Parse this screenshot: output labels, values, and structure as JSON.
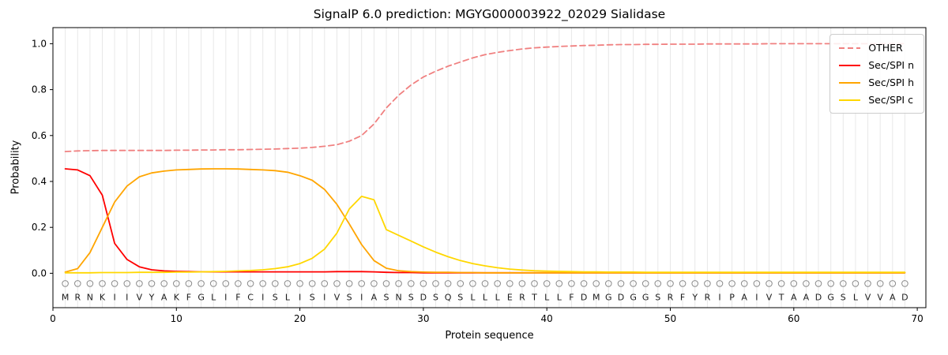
{
  "chart_data": {
    "type": "line",
    "title": "SignalP 6.0 prediction: MGYG000003922_02029 Sialidase",
    "xlabel": "Protein sequence",
    "ylabel": "Probability",
    "xlim": [
      0,
      70.7
    ],
    "ylim": [
      -0.15,
      1.07
    ],
    "xticks": [
      0,
      10,
      20,
      30,
      40,
      50,
      60,
      70
    ],
    "yticks": [
      0.0,
      0.2,
      0.4,
      0.6,
      0.8,
      1.0
    ],
    "grid": "vertical-line-per-residue",
    "legend_position": "upper-right",
    "marker_symbol": "O",
    "sequence": "MRNKIIVYAKFGLIFCISLISIVSIASNSDSQSLLLERTLLFDMGDGGSRFYRIPAIVTAADGSLVVAD",
    "colors": {
      "grid": "#e8e8e8",
      "axis": "#000000",
      "marker": "#8c8c8c",
      "letters": "#1a1a1a",
      "legend_border": "#cccccc"
    },
    "series": [
      {
        "name": "OTHER",
        "color": "#f08080",
        "dashed": true,
        "values": [
          0.53,
          0.533,
          0.534,
          0.535,
          0.535,
          0.535,
          0.535,
          0.535,
          0.535,
          0.536,
          0.536,
          0.537,
          0.537,
          0.538,
          0.538,
          0.539,
          0.54,
          0.541,
          0.543,
          0.545,
          0.548,
          0.553,
          0.56,
          0.575,
          0.6,
          0.65,
          0.72,
          0.775,
          0.82,
          0.855,
          0.88,
          0.902,
          0.92,
          0.938,
          0.952,
          0.962,
          0.97,
          0.977,
          0.982,
          0.985,
          0.988,
          0.99,
          0.992,
          0.993,
          0.995,
          0.996,
          0.996,
          0.997,
          0.997,
          0.998,
          0.998,
          0.998,
          0.999,
          0.999,
          0.999,
          0.999,
          0.999,
          1.0,
          1.0,
          1.0,
          1.0,
          1.0,
          1.0,
          1.0,
          1.0,
          1.0,
          1.0,
          1.0,
          1.0
        ]
      },
      {
        "name": "Sec/SPI n",
        "color": "#ff0000",
        "dashed": false,
        "values": [
          0.455,
          0.45,
          0.425,
          0.34,
          0.13,
          0.06,
          0.028,
          0.015,
          0.01,
          0.008,
          0.007,
          0.006,
          0.006,
          0.006,
          0.006,
          0.006,
          0.006,
          0.006,
          0.006,
          0.006,
          0.006,
          0.006,
          0.007,
          0.007,
          0.007,
          0.006,
          0.004,
          0.003,
          0.003,
          0.002,
          0.002,
          0.002,
          0.002,
          0.002,
          0.002,
          0.002,
          0.002,
          0.002,
          0.002,
          0.002,
          0.002,
          0.002,
          0.002,
          0.002,
          0.002,
          0.002,
          0.002,
          0.002,
          0.002,
          0.002,
          0.002,
          0.002,
          0.002,
          0.002,
          0.002,
          0.002,
          0.002,
          0.002,
          0.002,
          0.002,
          0.002,
          0.002,
          0.002,
          0.002,
          0.002,
          0.002,
          0.002,
          0.002,
          0.002
        ]
      },
      {
        "name": "Sec/SPI h",
        "color": "#ffa500",
        "dashed": false,
        "values": [
          0.005,
          0.02,
          0.09,
          0.2,
          0.31,
          0.38,
          0.42,
          0.437,
          0.445,
          0.45,
          0.452,
          0.454,
          0.455,
          0.455,
          0.454,
          0.452,
          0.45,
          0.447,
          0.44,
          0.425,
          0.405,
          0.365,
          0.3,
          0.215,
          0.125,
          0.055,
          0.022,
          0.011,
          0.007,
          0.005,
          0.004,
          0.004,
          0.003,
          0.003,
          0.002,
          0.002,
          0.002,
          0.002,
          0.002,
          0.002,
          0.002,
          0.002,
          0.002,
          0.002,
          0.002,
          0.002,
          0.002,
          0.002,
          0.002,
          0.002,
          0.002,
          0.002,
          0.002,
          0.002,
          0.002,
          0.002,
          0.002,
          0.002,
          0.002,
          0.002,
          0.002,
          0.002,
          0.002,
          0.002,
          0.002,
          0.002,
          0.002,
          0.002,
          0.002
        ]
      },
      {
        "name": "Sec/SPI c",
        "color": "#ffd700",
        "dashed": false,
        "values": [
          0.002,
          0.002,
          0.002,
          0.003,
          0.003,
          0.003,
          0.004,
          0.004,
          0.004,
          0.005,
          0.005,
          0.006,
          0.007,
          0.008,
          0.01,
          0.012,
          0.015,
          0.02,
          0.028,
          0.042,
          0.065,
          0.105,
          0.175,
          0.28,
          0.335,
          0.32,
          0.19,
          0.165,
          0.14,
          0.115,
          0.092,
          0.072,
          0.055,
          0.042,
          0.032,
          0.024,
          0.018,
          0.014,
          0.011,
          0.009,
          0.008,
          0.007,
          0.006,
          0.006,
          0.005,
          0.005,
          0.005,
          0.004,
          0.004,
          0.004,
          0.004,
          0.004,
          0.004,
          0.004,
          0.004,
          0.004,
          0.004,
          0.004,
          0.004,
          0.004,
          0.004,
          0.004,
          0.004,
          0.004,
          0.004,
          0.004,
          0.004,
          0.004,
          0.004
        ]
      }
    ]
  }
}
